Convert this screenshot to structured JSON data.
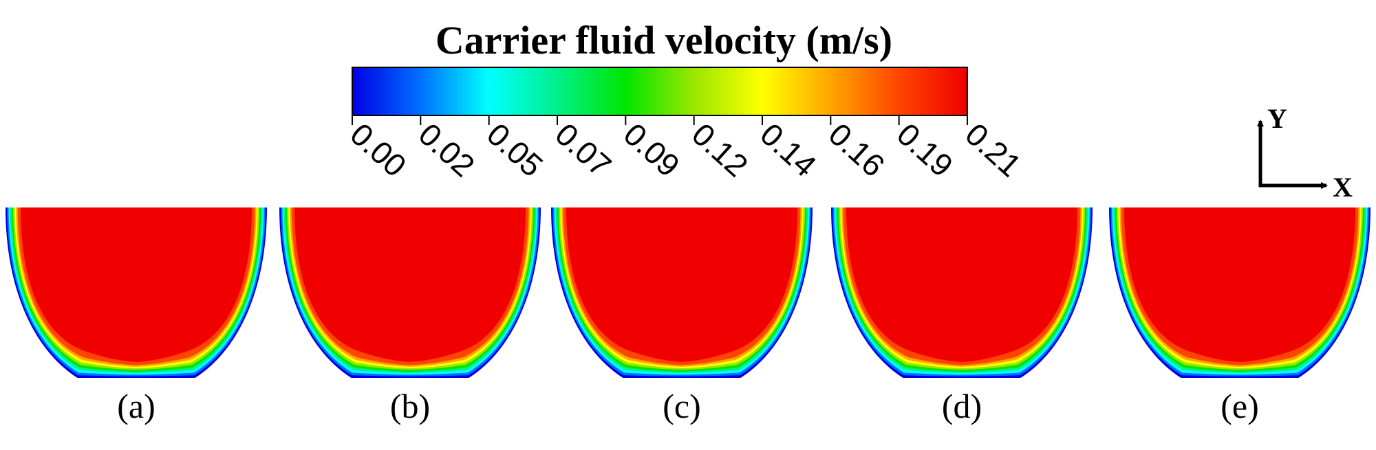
{
  "colorbar": {
    "title": "Carrier fluid velocity (m/s)",
    "min": 0.0,
    "max": 0.21,
    "ticks": [
      "0.00",
      "0.02",
      "0.05",
      "0.07",
      "0.09",
      "0.12",
      "0.14",
      "0.16",
      "0.19",
      "0.21"
    ],
    "colors": [
      "#0000e6",
      "#0070ff",
      "#00ffff",
      "#00f08a",
      "#00e600",
      "#9be600",
      "#ffff00",
      "#ffa500",
      "#ff4500",
      "#f00000"
    ]
  },
  "axes": {
    "y_label": "Y",
    "x_label": "X"
  },
  "panels": [
    {
      "label": "(a)"
    },
    {
      "label": "(b)"
    },
    {
      "label": "(c)"
    },
    {
      "label": "(d)"
    },
    {
      "label": "(e)"
    }
  ]
}
